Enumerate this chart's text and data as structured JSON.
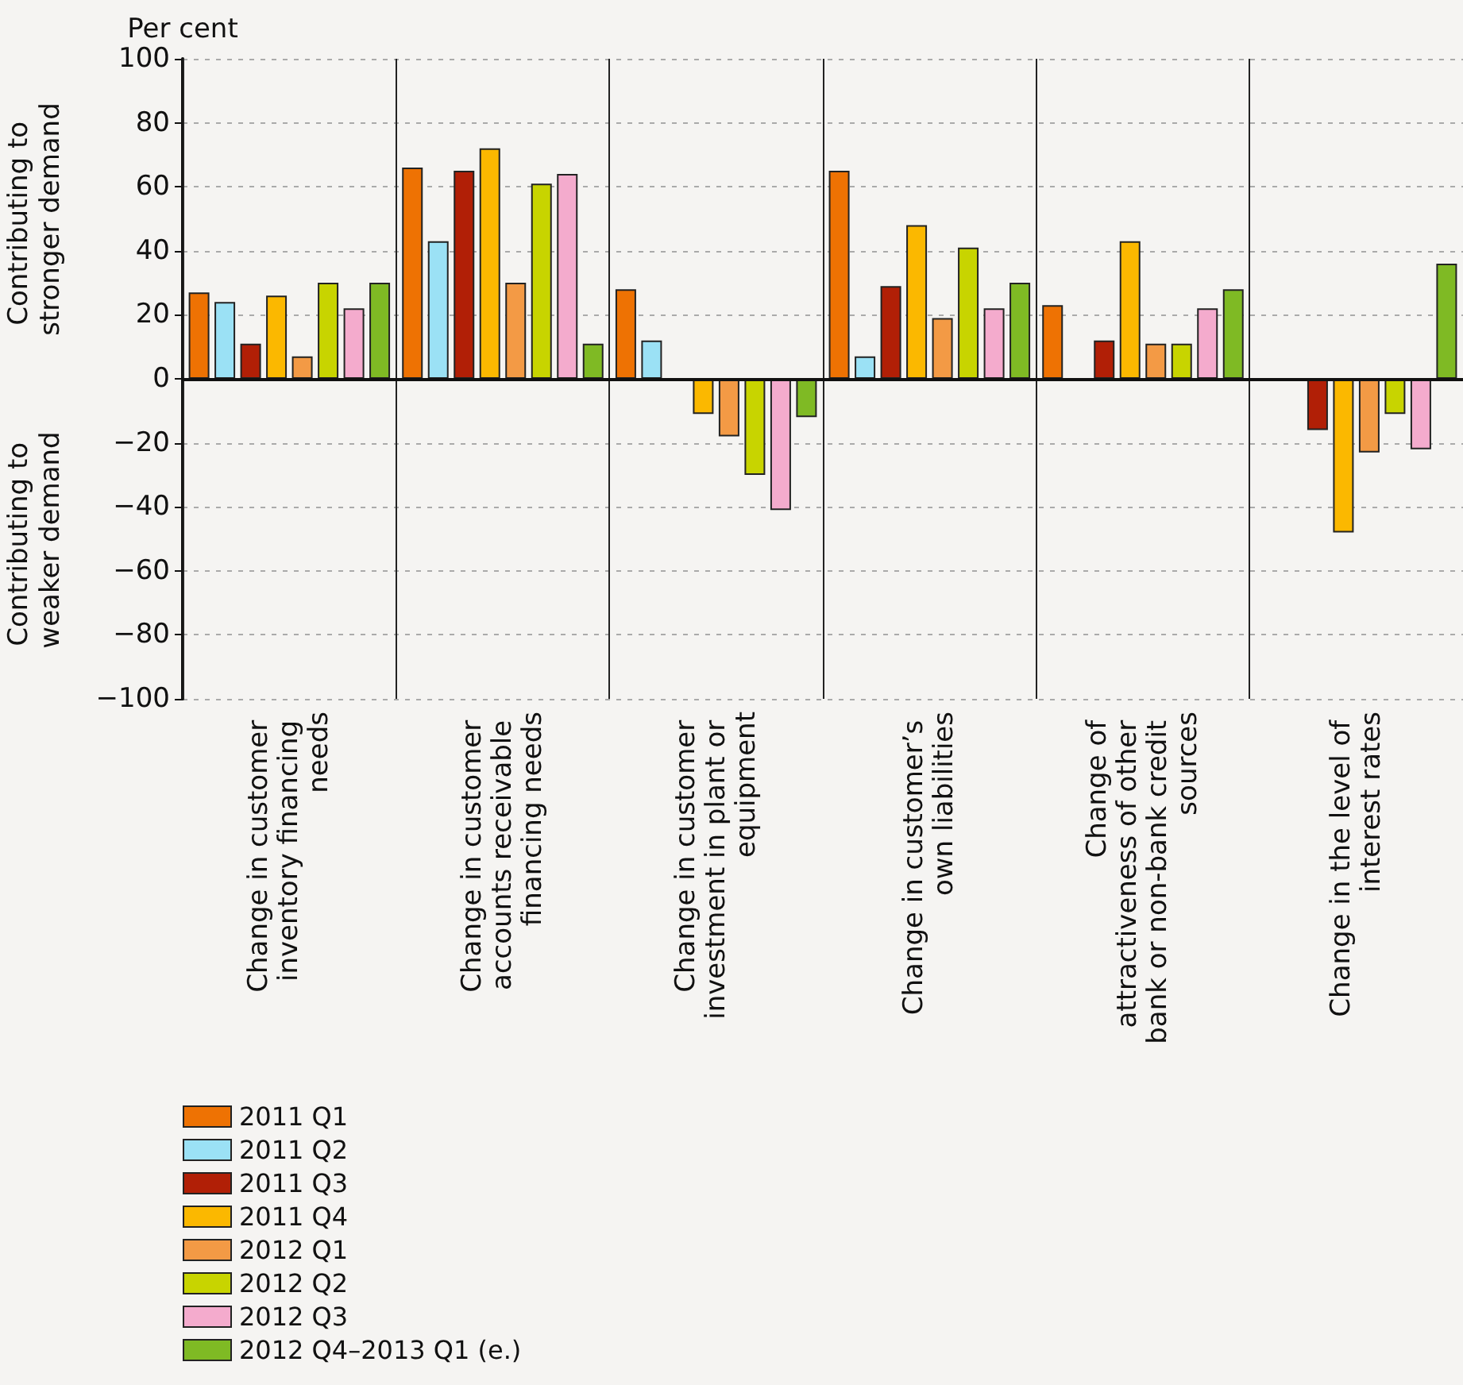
{
  "chart_data": {
    "type": "bar",
    "ylabel": "Per cent",
    "annotations": [
      "Contributing to stronger demand",
      "Contributing to weaker demand"
    ],
    "categories": [
      "Change in customer inventory financing needs",
      "Change in customer accounts receivable financing needs",
      "Change in customer investment in plant or equipment",
      "Change in customer’s own liabilities",
      "Change of attractiveness of other bank or non-bank credit sources",
      "Change in the level of interest rates"
    ],
    "series": [
      {
        "name": "2011 Q1",
        "color": "#ee7203",
        "values": [
          27,
          66,
          28,
          65,
          23,
          null
        ]
      },
      {
        "name": "2011 Q2",
        "color": "#9be1f5",
        "values": [
          24,
          43,
          12,
          7,
          null,
          null
        ]
      },
      {
        "name": "2011 Q3",
        "color": "#b11f06",
        "values": [
          11,
          65,
          null,
          29,
          12,
          -16
        ]
      },
      {
        "name": "2011 Q4",
        "color": "#fbb800",
        "values": [
          26,
          72,
          -11,
          48,
          43,
          -48
        ]
      },
      {
        "name": "2012 Q1",
        "color": "#f39a45",
        "values": [
          7,
          30,
          -18,
          19,
          11,
          -23
        ]
      },
      {
        "name": "2012 Q2",
        "color": "#c8d400",
        "values": [
          30,
          61,
          -30,
          41,
          11,
          -11
        ]
      },
      {
        "name": "2012 Q3",
        "color": "#f4abcd",
        "values": [
          22,
          64,
          -41,
          22,
          22,
          -22
        ]
      },
      {
        "name": "2012 Q4–2013 Q1 (e.)",
        "color": "#7fba24",
        "values": [
          30,
          11,
          -12,
          30,
          28,
          36
        ]
      }
    ],
    "ylim": [
      -100,
      100
    ],
    "yticks": [
      -100,
      -80,
      -60,
      -40,
      -20,
      0,
      20,
      40,
      60,
      80,
      100
    ],
    "grid": "y",
    "legend": "bottom left"
  }
}
